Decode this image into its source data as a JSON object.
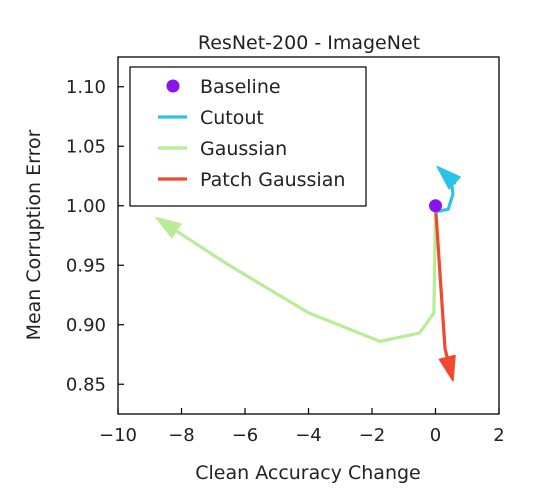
{
  "chart_data": {
    "type": "line",
    "title": "ResNet-200 - ImageNet",
    "xlabel": "Clean Accuracy Change",
    "ylabel": "Mean Corruption Error",
    "xlim": [
      -10,
      2
    ],
    "ylim": [
      0.825,
      1.125
    ],
    "xticks": [
      -10,
      -8,
      -6,
      -4,
      -2,
      0,
      2
    ],
    "yticks": [
      0.85,
      0.9,
      0.95,
      1.0,
      1.05,
      1.1
    ],
    "xtick_labels": [
      "−10",
      "−8",
      "−6",
      "−4",
      "−2",
      "0",
      "2"
    ],
    "ytick_labels": [
      "0.85",
      "0.90",
      "0.95",
      "1.00",
      "1.05",
      "1.10"
    ],
    "grid": false,
    "legend_position": "top-left",
    "series": [
      {
        "name": "Baseline",
        "kind": "point",
        "color": "#8a11f0",
        "x": [
          0
        ],
        "y": [
          1.0
        ]
      },
      {
        "name": "Cutout",
        "kind": "arrow",
        "color": "#2ec2e8",
        "x": [
          0.0,
          0.4,
          0.55,
          0.5,
          0.25,
          0.05
        ],
        "y": [
          0.995,
          0.997,
          1.01,
          1.02,
          1.028,
          1.033
        ]
      },
      {
        "name": "Gaussian",
        "kind": "arrow",
        "color": "#b9ec96",
        "x": [
          0.0,
          -0.05,
          -0.5,
          -1.75,
          -4.0,
          -6.5,
          -8.8
        ],
        "y": [
          1.0,
          0.91,
          0.893,
          0.886,
          0.91,
          0.95,
          0.99
        ]
      },
      {
        "name": "Patch Gaussian",
        "kind": "arrow",
        "color": "#f2482f",
        "x": [
          0.0,
          0.2,
          0.3,
          0.55
        ],
        "y": [
          1.0,
          0.92,
          0.88,
          0.853
        ]
      }
    ]
  }
}
